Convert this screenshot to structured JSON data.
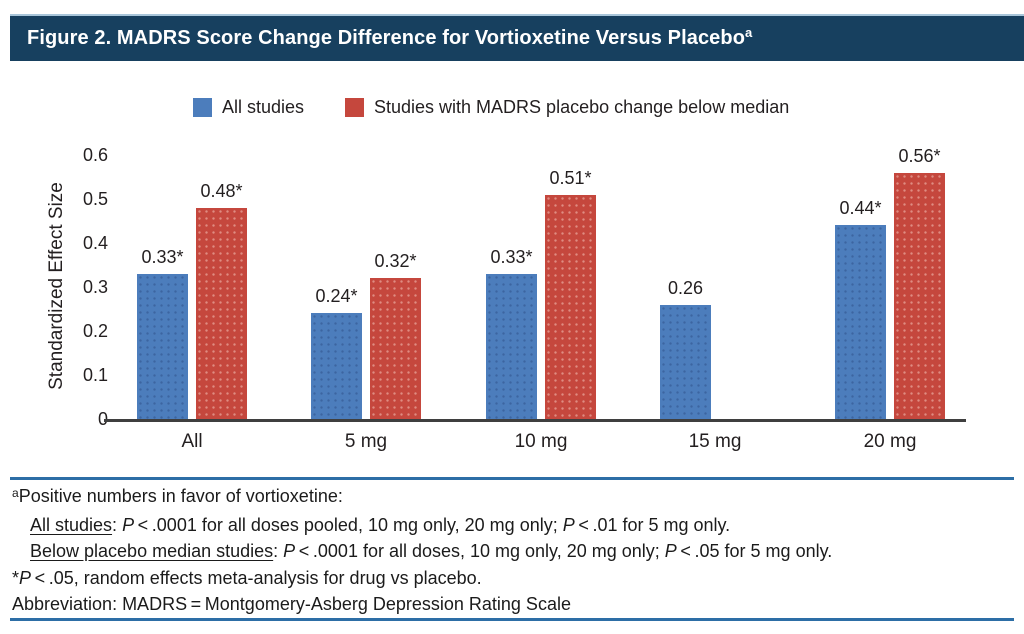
{
  "title": {
    "text": "Figure 2. MADRS Score Change Difference for Vortioxetine Versus Placebo",
    "superscript": "a"
  },
  "palette": {
    "title_bar_bg": "#17405F",
    "title_text": "#FFFFFF",
    "blue_series": "#4C7DBC",
    "red_series": "#C5473D",
    "axis_line": "#3F3F3F",
    "rule_blue": "#2D6EA6"
  },
  "legend": {
    "items": [
      {
        "label": "All studies",
        "color": "#4C7DBC"
      },
      {
        "label": "Studies with MADRS placebo change below median",
        "color": "#C5473D"
      }
    ]
  },
  "chart_data": {
    "type": "bar",
    "title": "Figure 2. MADRS Score Change Difference for Vortioxetine Versus Placebo",
    "categories": [
      "All",
      "5 mg",
      "10 mg",
      "15 mg",
      "20 mg"
    ],
    "series": [
      {
        "name": "All studies",
        "color": "#4C7DBC",
        "values": [
          0.33,
          0.24,
          0.33,
          0.26,
          0.44
        ],
        "labels": [
          "0.33*",
          "0.24*",
          "0.33*",
          "0.26",
          "0.44*"
        ]
      },
      {
        "name": "Studies with MADRS placebo change below median",
        "color": "#C5473D",
        "values": [
          0.48,
          0.32,
          0.51,
          null,
          0.56
        ],
        "labels": [
          "0.48*",
          "0.32*",
          "0.51*",
          "",
          "0.56*"
        ]
      }
    ],
    "xlabel": "",
    "ylabel": "Standardized Effect Size",
    "ylim": [
      0,
      0.6
    ],
    "yticks": [
      "0",
      "0.1",
      "0.2",
      "0.3",
      "0.4",
      "0.5",
      "0.6"
    ],
    "grid": false,
    "legend_position": "top"
  },
  "footnotes": {
    "lines": [
      {
        "indent": false,
        "segments": [
          {
            "t": "a",
            "s": "sup"
          },
          {
            "t": "Positive numbers in favor of vortioxetine:"
          }
        ]
      },
      {
        "indent": true,
        "segments": [
          {
            "t": "All studies",
            "s": "u"
          },
          {
            "t": ": "
          },
          {
            "t": "P",
            "s": "i"
          },
          {
            "t": " < .0001 for all doses pooled, 10 mg only, 20 mg only; "
          },
          {
            "t": "P",
            "s": "i"
          },
          {
            "t": " < .01 for 5 mg only."
          }
        ]
      },
      {
        "indent": true,
        "segments": [
          {
            "t": "Below placebo median studies",
            "s": "u"
          },
          {
            "t": ": "
          },
          {
            "t": "P",
            "s": "i"
          },
          {
            "t": " < .0001 for all doses, 10 mg only, 20 mg only; "
          },
          {
            "t": "P",
            "s": "i"
          },
          {
            "t": " < .05 for 5 mg only."
          }
        ]
      },
      {
        "indent": false,
        "segments": [
          {
            "t": "*"
          },
          {
            "t": "P",
            "s": "i"
          },
          {
            "t": " < .05, random effects meta-analysis for drug vs placebo."
          }
        ]
      },
      {
        "indent": false,
        "segments": [
          {
            "t": "Abbreviation: MADRS = Montgomery-Asberg Depression Rating Scale"
          }
        ]
      }
    ]
  }
}
